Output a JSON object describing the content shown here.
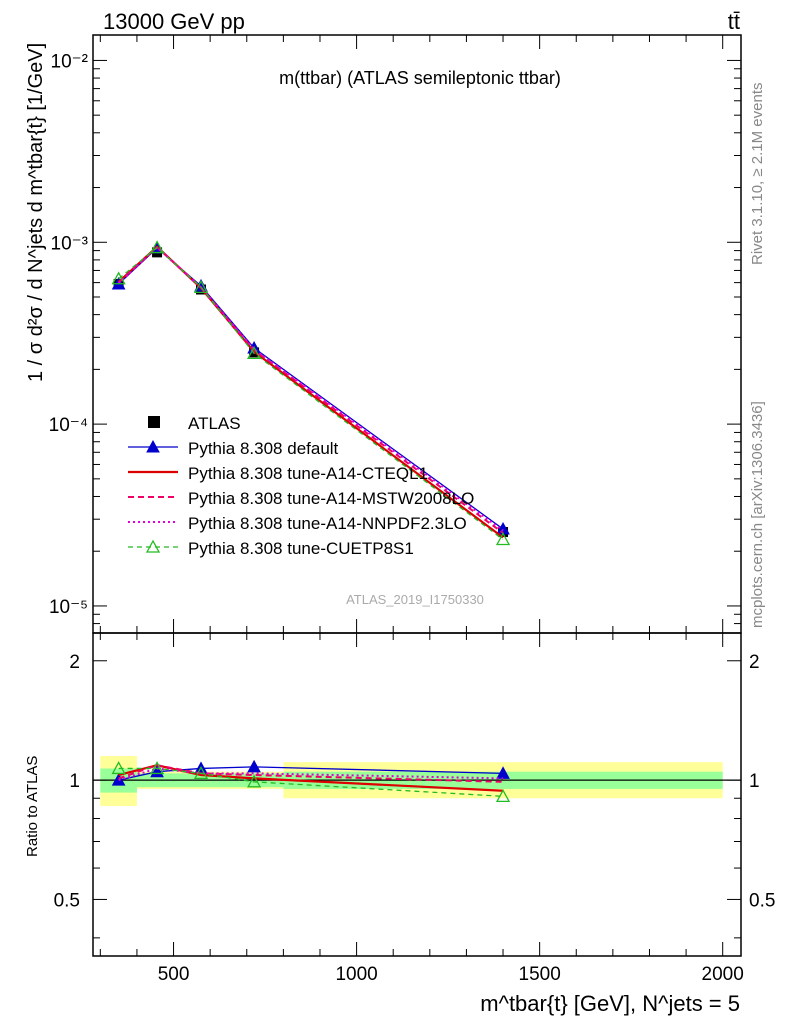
{
  "header": {
    "left": "13000 GeV pp",
    "right": "tt̄"
  },
  "side_labels": {
    "rivet": "Rivet 3.1.10, ≥ 2.1M events",
    "mcplots": "mcplots.cern.ch [arXiv:1306.3436]"
  },
  "chart_data": [
    {
      "type": "line",
      "title": "m(ttbar) (ATLAS semileptonic ttbar)",
      "watermark": "ATLAS_2019_I1750330",
      "ylabel": "1 / σ d²σ / d N^jets d m^tbar{t} [1/GeV]",
      "yscale": "log",
      "xlim": [
        280,
        2050
      ],
      "ylim": [
        7.1e-06,
        0.0138
      ],
      "ytick_labels": [
        "10⁻⁵",
        "10⁻⁴",
        "10⁻³",
        "10⁻²"
      ],
      "x": [
        350,
        455,
        575,
        720,
        1400
      ],
      "data": {
        "name": "ATLAS",
        "values": [
          0.00059,
          0.00088,
          0.00055,
          0.000248,
          2.55e-05
        ],
        "x_lo": [
          300,
          400,
          500,
          650,
          800
        ],
        "x_hi": [
          400,
          500,
          650,
          800,
          2000
        ]
      },
      "series": [
        {
          "name": "Pythia 8.308 default",
          "color": "#0000cc",
          "style": "solid-triangle",
          "values": [
            0.00059,
            0.00093,
            0.000575,
            0.000262,
            2.65e-05
          ]
        },
        {
          "name": "Pythia 8.308 tune-A14-CTEQL1",
          "color": "#dd0000",
          "style": "solid",
          "values": [
            0.000605,
            0.000945,
            0.00056,
            0.00025,
            2.38e-05
          ]
        },
        {
          "name": "Pythia 8.308 tune-A14-MSTW2008LO",
          "color": "#ee0066",
          "style": "dashed",
          "values": [
            0.0006,
            0.00094,
            0.000565,
            0.000255,
            2.52e-05
          ]
        },
        {
          "name": "Pythia 8.308 tune-A14-NNPDF2.3LO",
          "color": "#dd00dd",
          "style": "dotted",
          "values": [
            0.000595,
            0.000935,
            0.000565,
            0.000258,
            2.6e-05
          ]
        },
        {
          "name": "Pythia 8.308 tune-CUETP8S1",
          "color": "#22bb22",
          "style": "dashed-open-triangle",
          "values": [
            0.00063,
            0.000935,
            0.000565,
            0.000245,
            2.32e-05
          ]
        }
      ]
    },
    {
      "type": "line",
      "ylabel": "Ratio to ATLAS",
      "xlabel": "m^tbar{t} [GeV], N^jets = 5",
      "xlim": [
        280,
        2050
      ],
      "ylim": [
        0.36,
        2.35
      ],
      "ytick_labels": [
        "0.5",
        "1",
        "2"
      ],
      "xtick_labels": [
        "500",
        "1000",
        "1500",
        "2000"
      ],
      "bands": {
        "x_lo": [
          300,
          400,
          800
        ],
        "x_hi": [
          400,
          800,
          2000
        ],
        "inner": [
          [
            0.93,
            1.07
          ],
          [
            0.96,
            1.04
          ],
          [
            0.95,
            1.05
          ]
        ],
        "outer": [
          [
            0.86,
            1.15
          ],
          [
            0.95,
            1.05
          ],
          [
            0.9,
            1.11
          ]
        ]
      },
      "series": [
        {
          "name": "Pythia 8.308 default",
          "values": [
            1.0,
            1.05,
            1.07,
            1.08,
            1.04
          ]
        },
        {
          "name": "Pythia 8.308 tune-A14-CTEQL1",
          "values": [
            1.03,
            1.09,
            1.03,
            1.01,
            0.94
          ]
        },
        {
          "name": "Pythia 8.308 tune-A14-MSTW2008LO",
          "values": [
            1.01,
            1.09,
            1.04,
            1.03,
            0.99
          ]
        },
        {
          "name": "Pythia 8.308 tune-A14-NNPDF2.3LO",
          "values": [
            1.0,
            1.07,
            1.04,
            1.04,
            1.01
          ]
        },
        {
          "name": "Pythia 8.308 tune-CUETP8S1",
          "values": [
            1.07,
            1.07,
            1.04,
            0.99,
            0.91
          ]
        }
      ]
    }
  ]
}
